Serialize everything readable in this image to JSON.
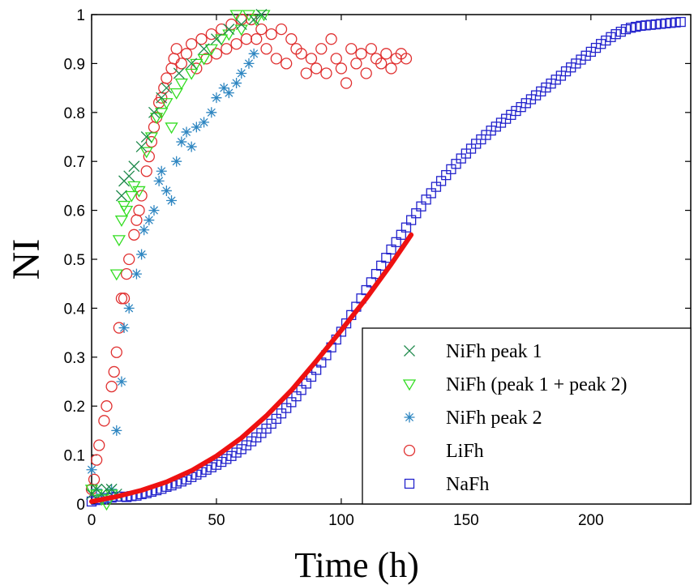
{
  "chart_data": {
    "type": "scatter",
    "xlabel": "Time (h)",
    "ylabel": "NI",
    "xlim": [
      0,
      240
    ],
    "ylim": [
      0,
      1
    ],
    "xticks": [
      0,
      50,
      100,
      150,
      200
    ],
    "yticks": [
      0,
      0.1,
      0.2,
      0.3,
      0.4,
      0.5,
      0.6,
      0.7,
      0.8,
      0.9,
      1
    ],
    "ytick_labels": [
      "0",
      "0.1",
      "0.2",
      "0.3",
      "0.4",
      "0.5",
      "0.6",
      "0.7",
      "0.8",
      "0.9",
      "1"
    ],
    "grid": false,
    "legend_position": "bottom-right",
    "series": [
      {
        "name": "NiFh peak 1",
        "marker": "x",
        "color": "#1f8a4c",
        "points": [
          [
            0,
            0.02
          ],
          [
            2,
            0.03
          ],
          [
            4,
            0.02
          ],
          [
            6,
            0.03
          ],
          [
            8,
            0.03
          ],
          [
            10,
            0.02
          ],
          [
            12,
            0.63
          ],
          [
            13,
            0.66
          ],
          [
            15,
            0.67
          ],
          [
            17,
            0.69
          ],
          [
            20,
            0.73
          ],
          [
            22,
            0.75
          ],
          [
            25,
            0.8
          ],
          [
            28,
            0.83
          ],
          [
            30,
            0.85
          ],
          [
            35,
            0.88
          ],
          [
            40,
            0.9
          ],
          [
            45,
            0.93
          ],
          [
            50,
            0.95
          ],
          [
            55,
            0.97
          ],
          [
            60,
            0.98
          ],
          [
            65,
            0.99
          ],
          [
            68,
            1.0
          ]
        ]
      },
      {
        "name": "NiFh (peak 1 + peak 2)",
        "marker": "triangle-down",
        "color": "#33dd22",
        "points": [
          [
            0,
            0.03
          ],
          [
            2,
            0.02
          ],
          [
            4,
            0.01
          ],
          [
            6,
            0.0
          ],
          [
            8,
            0.02
          ],
          [
            10,
            0.47
          ],
          [
            11,
            0.54
          ],
          [
            12,
            0.58
          ],
          [
            13,
            0.61
          ],
          [
            14,
            0.6
          ],
          [
            16,
            0.63
          ],
          [
            17,
            0.65
          ],
          [
            19,
            0.64
          ],
          [
            22,
            0.72
          ],
          [
            24,
            0.75
          ],
          [
            26,
            0.79
          ],
          [
            28,
            0.8
          ],
          [
            30,
            0.82
          ],
          [
            32,
            0.77
          ],
          [
            34,
            0.84
          ],
          [
            36,
            0.86
          ],
          [
            40,
            0.88
          ],
          [
            42,
            0.9
          ],
          [
            45,
            0.91
          ],
          [
            48,
            0.93
          ],
          [
            52,
            0.95
          ],
          [
            55,
            0.96
          ],
          [
            58,
            1.0
          ],
          [
            60,
            0.97
          ],
          [
            63,
            1.0
          ],
          [
            66,
            0.99
          ],
          [
            69,
            1.0
          ]
        ]
      },
      {
        "name": "NiFh peak 2",
        "marker": "asterisk",
        "color": "#2e86c1",
        "points": [
          [
            0,
            0.07
          ],
          [
            2,
            0.03
          ],
          [
            4,
            0.02
          ],
          [
            6,
            0.01
          ],
          [
            8,
            0.03
          ],
          [
            10,
            0.15
          ],
          [
            12,
            0.25
          ],
          [
            13,
            0.36
          ],
          [
            15,
            0.4
          ],
          [
            18,
            0.47
          ],
          [
            20,
            0.51
          ],
          [
            21,
            0.56
          ],
          [
            23,
            0.58
          ],
          [
            25,
            0.6
          ],
          [
            27,
            0.66
          ],
          [
            28,
            0.68
          ],
          [
            30,
            0.64
          ],
          [
            32,
            0.62
          ],
          [
            34,
            0.7
          ],
          [
            36,
            0.74
          ],
          [
            38,
            0.76
          ],
          [
            40,
            0.73
          ],
          [
            42,
            0.77
          ],
          [
            45,
            0.78
          ],
          [
            48,
            0.8
          ],
          [
            50,
            0.83
          ],
          [
            53,
            0.85
          ],
          [
            55,
            0.84
          ],
          [
            58,
            0.86
          ],
          [
            60,
            0.88
          ],
          [
            63,
            0.9
          ],
          [
            65,
            0.92
          ]
        ]
      },
      {
        "name": "LiFh",
        "marker": "circle",
        "color": "#e03030",
        "points": [
          [
            0,
            0.03
          ],
          [
            1,
            0.05
          ],
          [
            2,
            0.09
          ],
          [
            3,
            0.12
          ],
          [
            5,
            0.17
          ],
          [
            6,
            0.2
          ],
          [
            8,
            0.24
          ],
          [
            9,
            0.27
          ],
          [
            10,
            0.31
          ],
          [
            11,
            0.36
          ],
          [
            12,
            0.42
          ],
          [
            13,
            0.42
          ],
          [
            14,
            0.47
          ],
          [
            15,
            0.5
          ],
          [
            17,
            0.55
          ],
          [
            18,
            0.58
          ],
          [
            19,
            0.6
          ],
          [
            20,
            0.63
          ],
          [
            22,
            0.68
          ],
          [
            23,
            0.71
          ],
          [
            24,
            0.74
          ],
          [
            25,
            0.77
          ],
          [
            26,
            0.79
          ],
          [
            27,
            0.82
          ],
          [
            28,
            0.83
          ],
          [
            29,
            0.85
          ],
          [
            30,
            0.87
          ],
          [
            32,
            0.89
          ],
          [
            33,
            0.91
          ],
          [
            34,
            0.93
          ],
          [
            36,
            0.9
          ],
          [
            38,
            0.92
          ],
          [
            40,
            0.94
          ],
          [
            42,
            0.89
          ],
          [
            44,
            0.95
          ],
          [
            46,
            0.91
          ],
          [
            48,
            0.96
          ],
          [
            50,
            0.92
          ],
          [
            52,
            0.97
          ],
          [
            54,
            0.93
          ],
          [
            56,
            0.98
          ],
          [
            58,
            0.94
          ],
          [
            60,
            0.99
          ],
          [
            62,
            0.95
          ],
          [
            64,
            0.99
          ],
          [
            66,
            0.95
          ],
          [
            68,
            0.97
          ],
          [
            70,
            0.93
          ],
          [
            72,
            0.96
          ],
          [
            74,
            0.91
          ],
          [
            76,
            0.97
          ],
          [
            78,
            0.9
          ],
          [
            80,
            0.95
          ],
          [
            82,
            0.93
          ],
          [
            84,
            0.92
          ],
          [
            86,
            0.88
          ],
          [
            88,
            0.91
          ],
          [
            90,
            0.89
          ],
          [
            92,
            0.93
          ],
          [
            94,
            0.88
          ],
          [
            96,
            0.95
          ],
          [
            98,
            0.91
          ],
          [
            100,
            0.89
          ],
          [
            102,
            0.86
          ],
          [
            104,
            0.93
          ],
          [
            106,
            0.9
          ],
          [
            108,
            0.92
          ],
          [
            110,
            0.88
          ],
          [
            112,
            0.93
          ],
          [
            114,
            0.91
          ],
          [
            116,
            0.9
          ],
          [
            118,
            0.92
          ],
          [
            120,
            0.89
          ],
          [
            122,
            0.91
          ],
          [
            124,
            0.92
          ],
          [
            126,
            0.91
          ]
        ]
      },
      {
        "name": "NaFh",
        "marker": "square",
        "color": "#2222cc",
        "points": [
          [
            0,
            0.005
          ],
          [
            2,
            0.008
          ],
          [
            4,
            0.01
          ],
          [
            6,
            0.012
          ],
          [
            8,
            0.013
          ],
          [
            10,
            0.015
          ],
          [
            12,
            0.015
          ],
          [
            14,
            0.014
          ],
          [
            16,
            0.016
          ],
          [
            18,
            0.017
          ],
          [
            20,
            0.02
          ],
          [
            22,
            0.022
          ],
          [
            24,
            0.025
          ],
          [
            26,
            0.028
          ],
          [
            28,
            0.031
          ],
          [
            30,
            0.035
          ],
          [
            32,
            0.038
          ],
          [
            34,
            0.042
          ],
          [
            36,
            0.046
          ],
          [
            38,
            0.05
          ],
          [
            40,
            0.055
          ],
          [
            42,
            0.06
          ],
          [
            44,
            0.065
          ],
          [
            46,
            0.07
          ],
          [
            48,
            0.075
          ],
          [
            50,
            0.08
          ],
          [
            52,
            0.086
          ],
          [
            54,
            0.092
          ],
          [
            56,
            0.098
          ],
          [
            58,
            0.105
          ],
          [
            60,
            0.112
          ],
          [
            62,
            0.12
          ],
          [
            64,
            0.128
          ],
          [
            66,
            0.136
          ],
          [
            68,
            0.145
          ],
          [
            70,
            0.154
          ],
          [
            72,
            0.164
          ],
          [
            74,
            0.174
          ],
          [
            76,
            0.185
          ],
          [
            78,
            0.196
          ],
          [
            80,
            0.208
          ],
          [
            82,
            0.22
          ],
          [
            84,
            0.233
          ],
          [
            86,
            0.246
          ],
          [
            88,
            0.26
          ],
          [
            90,
            0.274
          ],
          [
            92,
            0.289
          ],
          [
            94,
            0.304
          ],
          [
            96,
            0.32
          ],
          [
            98,
            0.336
          ],
          [
            100,
            0.352
          ],
          [
            102,
            0.369
          ],
          [
            104,
            0.386
          ],
          [
            106,
            0.403
          ],
          [
            108,
            0.42
          ],
          [
            110,
            0.437
          ],
          [
            112,
            0.453
          ],
          [
            114,
            0.47
          ],
          [
            116,
            0.487
          ],
          [
            118,
            0.503
          ],
          [
            120,
            0.52
          ],
          [
            122,
            0.535
          ],
          [
            124,
            0.55
          ],
          [
            126,
            0.565
          ],
          [
            128,
            0.58
          ],
          [
            130,
            0.594
          ],
          [
            132,
            0.608
          ],
          [
            134,
            0.622
          ],
          [
            136,
            0.635
          ],
          [
            138,
            0.648
          ],
          [
            140,
            0.66
          ],
          [
            142,
            0.672
          ],
          [
            144,
            0.684
          ],
          [
            146,
            0.695
          ],
          [
            148,
            0.706
          ],
          [
            150,
            0.716
          ],
          [
            152,
            0.726
          ],
          [
            154,
            0.736
          ],
          [
            156,
            0.745
          ],
          [
            158,
            0.754
          ],
          [
            160,
            0.763
          ],
          [
            162,
            0.771
          ],
          [
            164,
            0.779
          ],
          [
            166,
            0.787
          ],
          [
            168,
            0.795
          ],
          [
            170,
            0.803
          ],
          [
            172,
            0.811
          ],
          [
            174,
            0.819
          ],
          [
            176,
            0.827
          ],
          [
            178,
            0.835
          ],
          [
            180,
            0.843
          ],
          [
            182,
            0.851
          ],
          [
            184,
            0.859
          ],
          [
            186,
            0.867
          ],
          [
            188,
            0.875
          ],
          [
            190,
            0.884
          ],
          [
            192,
            0.892
          ],
          [
            194,
            0.9
          ],
          [
            196,
            0.908
          ],
          [
            198,
            0.916
          ],
          [
            200,
            0.924
          ],
          [
            202,
            0.932
          ],
          [
            204,
            0.94
          ],
          [
            206,
            0.947
          ],
          [
            208,
            0.954
          ],
          [
            210,
            0.96
          ],
          [
            212,
            0.965
          ],
          [
            214,
            0.97
          ],
          [
            216,
            0.973
          ],
          [
            218,
            0.975
          ],
          [
            220,
            0.977
          ],
          [
            222,
            0.978
          ],
          [
            224,
            0.979
          ],
          [
            226,
            0.98
          ],
          [
            228,
            0.981
          ],
          [
            230,
            0.982
          ],
          [
            232,
            0.983
          ],
          [
            234,
            0.984
          ],
          [
            236,
            0.985
          ]
        ]
      }
    ],
    "fit_curve": {
      "color": "#ee1111",
      "x_range": [
        0,
        128
      ],
      "points": [
        [
          0,
          0.005
        ],
        [
          10,
          0.015
        ],
        [
          20,
          0.028
        ],
        [
          30,
          0.045
        ],
        [
          40,
          0.068
        ],
        [
          50,
          0.098
        ],
        [
          60,
          0.135
        ],
        [
          70,
          0.18
        ],
        [
          80,
          0.232
        ],
        [
          90,
          0.292
        ],
        [
          100,
          0.355
        ],
        [
          110,
          0.42
        ],
        [
          120,
          0.49
        ],
        [
          128,
          0.55
        ]
      ]
    }
  }
}
